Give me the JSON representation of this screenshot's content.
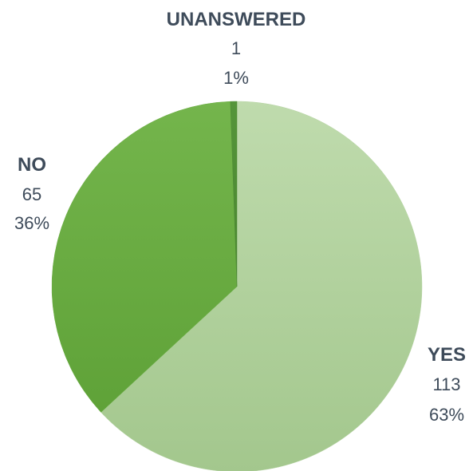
{
  "chart_data": {
    "type": "pie",
    "title": "",
    "slices": [
      {
        "label": "YES",
        "value": 113,
        "percent_label": "63%",
        "color": "#b5d3a2"
      },
      {
        "label": "NO",
        "value": 65,
        "percent_label": "36%",
        "color": "#6aad43"
      },
      {
        "label": "UNANSWERED",
        "value": 1,
        "percent_label": "1%",
        "color": "#4d8a34"
      }
    ],
    "text_color": "#3e4b5a",
    "legend": "none"
  }
}
